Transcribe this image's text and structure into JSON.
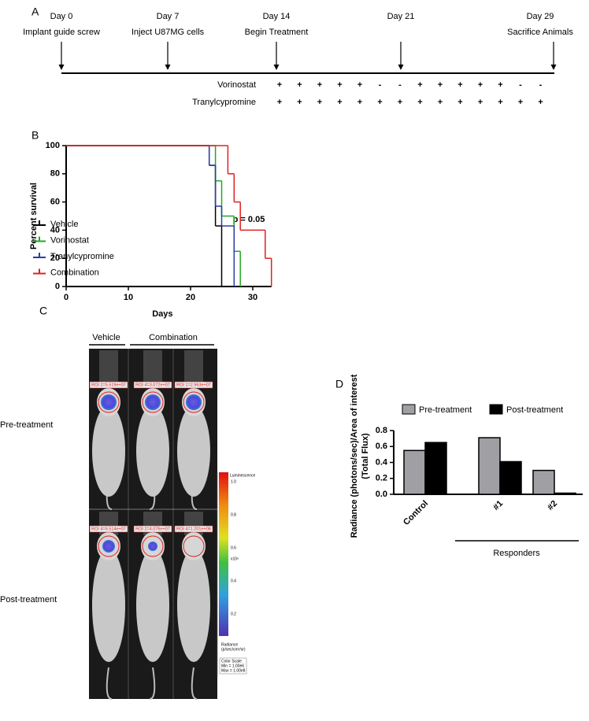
{
  "panels": {
    "a": "A",
    "b": "B",
    "c": "C",
    "d": "D"
  },
  "timeline": {
    "events": [
      {
        "day": "Day 0",
        "label": "Implant guide screw"
      },
      {
        "day": "Day 7",
        "label": "Inject U87MG cells"
      },
      {
        "day": "Day 14",
        "label": "Begin Treatment"
      },
      {
        "day": "Day 21"
      },
      {
        "day": "Day 29",
        "label": "Sacrifice Animals"
      }
    ],
    "treatments": [
      {
        "name": "Vorinostat",
        "schedule": [
          "+",
          "+",
          "+",
          "+",
          "+",
          "-",
          "-",
          "+",
          "+",
          "+",
          "+",
          "+",
          "-",
          "-"
        ]
      },
      {
        "name": "Tranylcypromine",
        "schedule": [
          "+",
          "+",
          "+",
          "+",
          "+",
          "+",
          "+",
          "+",
          "+",
          "+",
          "+",
          "+",
          "+",
          "+"
        ]
      }
    ]
  },
  "imaging": {
    "columns": [
      "Vehicle",
      "Combination"
    ],
    "rows": [
      "Pre-treatment",
      "Post-treatment"
    ],
    "roi": [
      [
        "ROI 2=5.519e+07",
        "ROI 4=3.072e+07",
        "ROI 1=2.963e+07"
      ],
      [
        "ROI 4=6.514e+07",
        "ROI 2=4.076e+07",
        "ROI 4=1.201e+06"
      ]
    ],
    "colorbar": {
      "title": "Luminescence",
      "ticks": [
        "1.0",
        "0.8",
        "0.6",
        "0.4",
        "0.2"
      ],
      "multiplier": "x10⁸",
      "unit": [
        "Radiance",
        "(p/sec/cm²/sr)"
      ],
      "scale": [
        "Color Scale",
        "Min = 1.00e6",
        "Max = 1.00e8"
      ]
    }
  },
  "chart_data": [
    {
      "type": "step",
      "xlabel": "Days",
      "ylabel": "Percent survival",
      "xlim": [
        0,
        33
      ],
      "xticks": [
        0,
        10,
        20,
        30
      ],
      "ylim": [
        0,
        100
      ],
      "yticks": [
        0,
        20,
        40,
        60,
        80,
        100
      ],
      "annotation": "p = 0.05",
      "series": [
        {
          "name": "Vehicle",
          "color": "#000000",
          "x": [
            0,
            23,
            24,
            25
          ],
          "values": [
            100,
            86,
            43,
            0
          ]
        },
        {
          "name": "Vorinostat",
          "color": "#22a822",
          "x": [
            0,
            24,
            25,
            27,
            28
          ],
          "values": [
            100,
            75,
            50,
            25,
            0
          ]
        },
        {
          "name": "Tranylcypromine",
          "color": "#2b3da8",
          "x": [
            0,
            23,
            24,
            25,
            27
          ],
          "values": [
            100,
            86,
            57,
            43,
            0
          ]
        },
        {
          "name": "Combination",
          "color": "#e02020",
          "x": [
            0,
            26,
            27,
            28,
            32,
            33
          ],
          "values": [
            100,
            80,
            60,
            40,
            20,
            0
          ]
        }
      ]
    },
    {
      "type": "bar",
      "ylabel": [
        "Radiance (photons/sec)/Area of interest",
        "(Total Flux)"
      ],
      "categories": [
        "Control",
        "#1",
        "#2"
      ],
      "group_label": "Responders",
      "ylim": [
        0,
        0.8
      ],
      "yticks": [
        {
          "value": 0,
          "label": "0.0"
        },
        0.2,
        0.4,
        0.6,
        0.8
      ],
      "series": [
        {
          "name": "Pre-treatment",
          "color": "#a0a0a4",
          "values": [
            0.55,
            0.71,
            0.3
          ]
        },
        {
          "name": "Post-treatment",
          "color": "#000000",
          "values": [
            0.65,
            0.41,
            0.015
          ]
        }
      ]
    }
  ]
}
